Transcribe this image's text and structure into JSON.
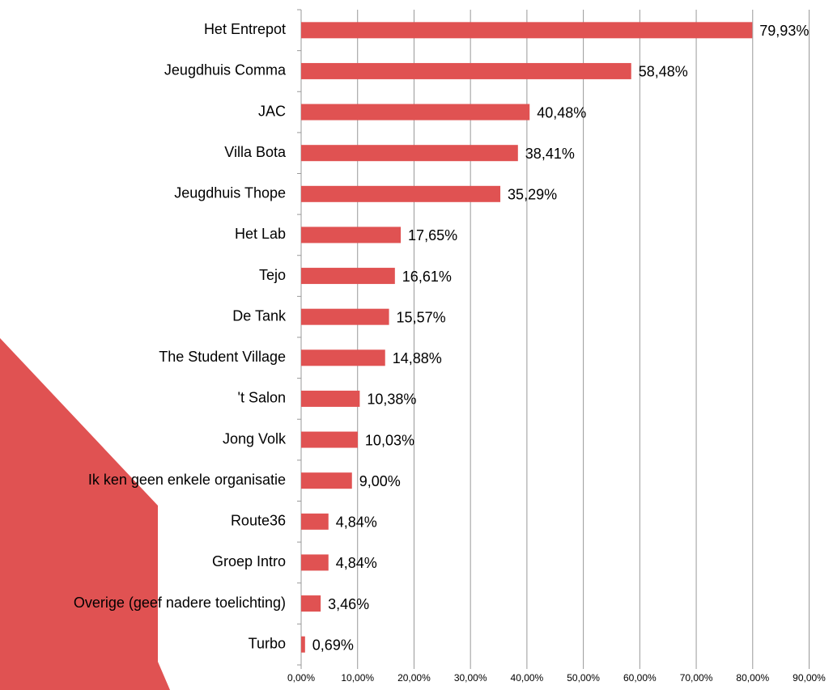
{
  "chart_data": {
    "type": "bar",
    "orientation": "horizontal",
    "categories": [
      "Het Entrepot",
      "Jeugdhuis Comma",
      "JAC",
      "Villa Bota",
      "Jeugdhuis Thope",
      "Het Lab",
      "Tejo",
      "De Tank",
      "The Student Village",
      "'t Salon",
      "Jong Volk",
      "Ik ken geen enkele organisatie",
      "Route36",
      "Groep Intro",
      "Overige (geef nadere toelichting)",
      "Turbo"
    ],
    "values": [
      79.93,
      58.48,
      40.48,
      38.41,
      35.29,
      17.65,
      16.61,
      15.57,
      14.88,
      10.38,
      10.03,
      9.0,
      4.84,
      4.84,
      3.46,
      0.69
    ],
    "value_labels": [
      "79,93%",
      "58,48%",
      "40,48%",
      "38,41%",
      "35,29%",
      "17,65%",
      "16,61%",
      "15,57%",
      "14,88%",
      "10,38%",
      "10,03%",
      "9,00%",
      "4,84%",
      "4,84%",
      "3,46%",
      "0,69%"
    ],
    "color": "#e05252",
    "xlim": [
      0,
      90
    ],
    "xticks": [
      {
        "value": 0,
        "label": "0,00%"
      },
      {
        "value": 10,
        "label": "10,00%"
      },
      {
        "value": 20,
        "label": "20,00%"
      },
      {
        "value": 30,
        "label": "30,00%"
      },
      {
        "value": 40,
        "label": "40,00%"
      },
      {
        "value": 50,
        "label": "50,00%"
      },
      {
        "value": 60,
        "label": "60,00%"
      },
      {
        "value": 70,
        "label": "70,00%"
      },
      {
        "value": 80,
        "label": "80,00%"
      },
      {
        "value": 90,
        "label": "90,00%"
      }
    ],
    "grid": true
  }
}
